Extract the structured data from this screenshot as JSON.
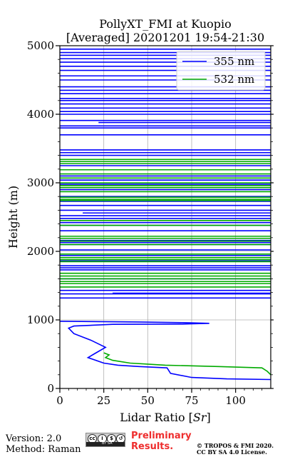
{
  "chart_data": {
    "type": "line",
    "title": [
      "PollyXT_FMI at Kuopio",
      "[Averaged] 20201201 19:54-21:30"
    ],
    "xlabel": "Lidar Ratio [",
    "xlabel_unit": "Sr",
    "xlabel_end": "]",
    "ylabel": "Height (m)",
    "xlim": [
      0,
      120
    ],
    "ylim": [
      0,
      5000
    ],
    "xticks": [
      0,
      25,
      50,
      75,
      100
    ],
    "yticks": [
      0,
      1000,
      2000,
      3000,
      4000,
      5000
    ],
    "grid": true,
    "legend_position": "top-right",
    "series": [
      {
        "name": "355 nm",
        "color": "#0000ff",
        "profile": [
          [
            120,
            130
          ],
          [
            95,
            140
          ],
          [
            75,
            160
          ],
          [
            63,
            220
          ],
          [
            61,
            300
          ],
          [
            45,
            320
          ],
          [
            33,
            340
          ],
          [
            25,
            370
          ],
          [
            16,
            450
          ],
          [
            20,
            510
          ],
          [
            26,
            600
          ],
          [
            18,
            700
          ],
          [
            8,
            800
          ],
          [
            5,
            880
          ],
          [
            8,
            910
          ],
          [
            30,
            935
          ],
          [
            70,
            940
          ],
          [
            85,
            950
          ],
          [
            70,
            960
          ],
          [
            45,
            970
          ],
          [
            0,
            980
          ]
        ],
        "segments": [
          [
            0,
            120,
            1320
          ],
          [
            0,
            120,
            1380
          ],
          [
            30,
            120,
            1390
          ],
          [
            0,
            120,
            1430
          ],
          [
            0,
            120,
            1600
          ],
          [
            0,
            120,
            1730
          ],
          [
            0,
            120,
            1760
          ],
          [
            0,
            120,
            1790
          ],
          [
            0,
            120,
            1860
          ],
          [
            0,
            120,
            1940
          ],
          [
            0,
            120,
            2020
          ],
          [
            0,
            120,
            2100
          ],
          [
            0,
            120,
            2130
          ],
          [
            0,
            120,
            2160
          ],
          [
            0,
            120,
            2300
          ],
          [
            0,
            120,
            2380
          ],
          [
            0,
            120,
            2420
          ],
          [
            0,
            120,
            2480
          ],
          [
            0,
            120,
            2520
          ],
          [
            13,
            120,
            2560
          ],
          [
            0,
            120,
            2600
          ],
          [
            0,
            120,
            2670
          ],
          [
            0,
            120,
            2730
          ],
          [
            0,
            120,
            2800
          ],
          [
            0,
            120,
            2900
          ],
          [
            0,
            120,
            2980
          ],
          [
            0,
            120,
            3040
          ],
          [
            0,
            120,
            3100
          ],
          [
            0,
            120,
            3250
          ],
          [
            0,
            120,
            3400
          ],
          [
            0,
            120,
            3440
          ],
          [
            0,
            120,
            3480
          ],
          [
            0,
            120,
            3700
          ],
          [
            0,
            120,
            3800
          ],
          [
            0,
            120,
            3830
          ],
          [
            22,
            120,
            3880
          ],
          [
            0,
            120,
            3910
          ],
          [
            0,
            120,
            4000
          ],
          [
            0,
            120,
            4040
          ],
          [
            0,
            120,
            4090
          ],
          [
            0,
            120,
            4150
          ],
          [
            0,
            120,
            4200
          ],
          [
            0,
            120,
            4230
          ],
          [
            0,
            120,
            4300
          ],
          [
            0,
            120,
            4350
          ],
          [
            0,
            120,
            4400
          ],
          [
            0,
            120,
            4500
          ],
          [
            0,
            120,
            4560
          ],
          [
            0,
            120,
            4640
          ],
          [
            0,
            120,
            4700
          ],
          [
            0,
            120,
            4760
          ],
          [
            0,
            120,
            4810
          ],
          [
            0,
            120,
            4860
          ],
          [
            0,
            120,
            4900
          ],
          [
            0,
            120,
            4950
          ]
        ]
      },
      {
        "name": "532 nm",
        "color": "#00aa00",
        "profile": [
          [
            120,
            200
          ],
          [
            118,
            250
          ],
          [
            115,
            300
          ],
          [
            90,
            320
          ],
          [
            60,
            340
          ],
          [
            40,
            370
          ],
          [
            30,
            410
          ],
          [
            26,
            450
          ],
          [
            28,
            490
          ],
          [
            25,
            520
          ]
        ],
        "segments": [
          [
            0,
            120,
            1480
          ],
          [
            0,
            120,
            1530
          ],
          [
            0,
            120,
            1560
          ],
          [
            0,
            120,
            1600
          ],
          [
            0,
            120,
            1640
          ],
          [
            0,
            120,
            1680
          ],
          [
            0,
            120,
            1850
          ],
          [
            0,
            120,
            1880
          ],
          [
            0,
            120,
            1910
          ],
          [
            0,
            120,
            1960
          ],
          [
            0,
            120,
            2100
          ],
          [
            0,
            120,
            2150
          ],
          [
            0,
            120,
            2190
          ],
          [
            0,
            120,
            2220
          ],
          [
            0,
            120,
            2380
          ],
          [
            0,
            120,
            2450
          ],
          [
            0,
            120,
            2740
          ],
          [
            0,
            120,
            2760
          ],
          [
            0,
            120,
            2790
          ],
          [
            0,
            120,
            2870
          ],
          [
            0,
            120,
            2930
          ],
          [
            0,
            120,
            2960
          ],
          [
            0,
            120,
            3000
          ],
          [
            0,
            120,
            3070
          ],
          [
            0,
            120,
            3130
          ],
          [
            0,
            120,
            3190
          ],
          [
            0,
            120,
            3280
          ],
          [
            0,
            120,
            3310
          ],
          [
            0,
            120,
            3340
          ]
        ]
      }
    ]
  },
  "footer": {
    "version": "Version: 2.0",
    "method": "Method: Raman",
    "badge_symbols": [
      "cc",
      "i",
      "$",
      "↺"
    ],
    "badge_text": "BY SA",
    "preliminary": [
      "Preliminary",
      "Results."
    ],
    "copyright": [
      "© TROPOS & FMI 2020.",
      "CC BY SA 4.0 License."
    ]
  }
}
